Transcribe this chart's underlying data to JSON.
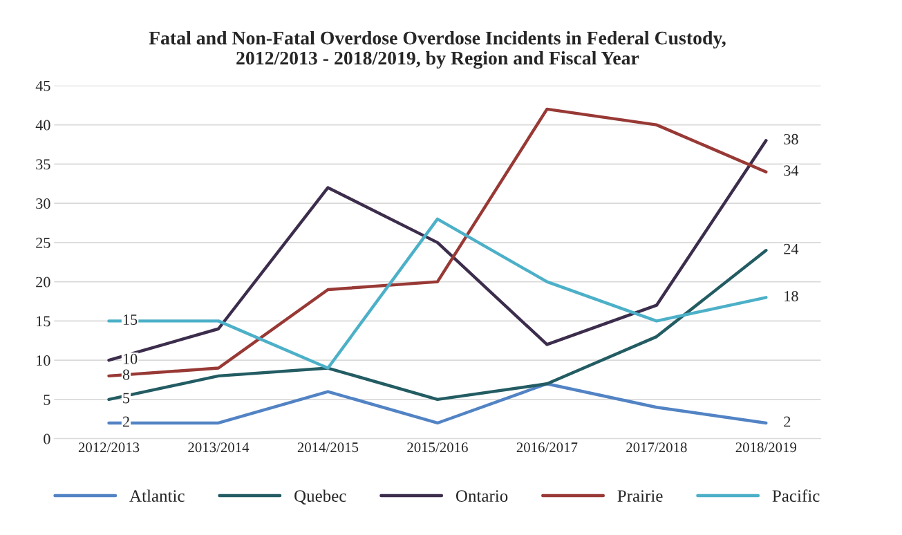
{
  "chart_data": {
    "type": "line",
    "title": "Fatal and Non-Fatal Overdose Overdose Incidents in Federal Custody,\n2012/2013 - 2018/2019, by Region and Fiscal Year",
    "categories": [
      "2012/2013",
      "2013/2014",
      "2014/2015",
      "2015/2016",
      "2016/2017",
      "2017/2018",
      "2018/2019"
    ],
    "series": [
      {
        "name": "Atlantic",
        "color": "#5283c4",
        "values": [
          2,
          2,
          6,
          2,
          7,
          4,
          2
        ],
        "value_labels": [
          "2",
          null,
          null,
          null,
          null,
          null,
          "2"
        ]
      },
      {
        "name": "Quebec",
        "color": "#235c63",
        "values": [
          5,
          8,
          9,
          5,
          7,
          13,
          24
        ],
        "value_labels": [
          "5",
          null,
          null,
          null,
          null,
          null,
          "24"
        ]
      },
      {
        "name": "Ontario",
        "color": "#3c2d4c",
        "values": [
          10,
          14,
          32,
          25,
          12,
          17,
          38
        ],
        "value_labels": [
          "10",
          null,
          null,
          null,
          null,
          null,
          "38"
        ]
      },
      {
        "name": "Prairie",
        "color": "#983935",
        "values": [
          8,
          9,
          19,
          20,
          42,
          40,
          34
        ],
        "value_labels": [
          "8",
          null,
          null,
          null,
          null,
          null,
          "34"
        ]
      },
      {
        "name": "Pacific",
        "color": "#4cb0c8",
        "values": [
          15,
          15,
          9,
          28,
          20,
          15,
          18
        ],
        "value_labels": [
          "15",
          null,
          null,
          null,
          null,
          null,
          "18"
        ]
      }
    ],
    "ylim": [
      0,
      45
    ],
    "yticks": [
      0,
      5,
      10,
      15,
      20,
      25,
      30,
      35,
      40,
      45
    ],
    "grid": "y",
    "legend": "bottom",
    "marker": "none",
    "line_style": "solid"
  }
}
